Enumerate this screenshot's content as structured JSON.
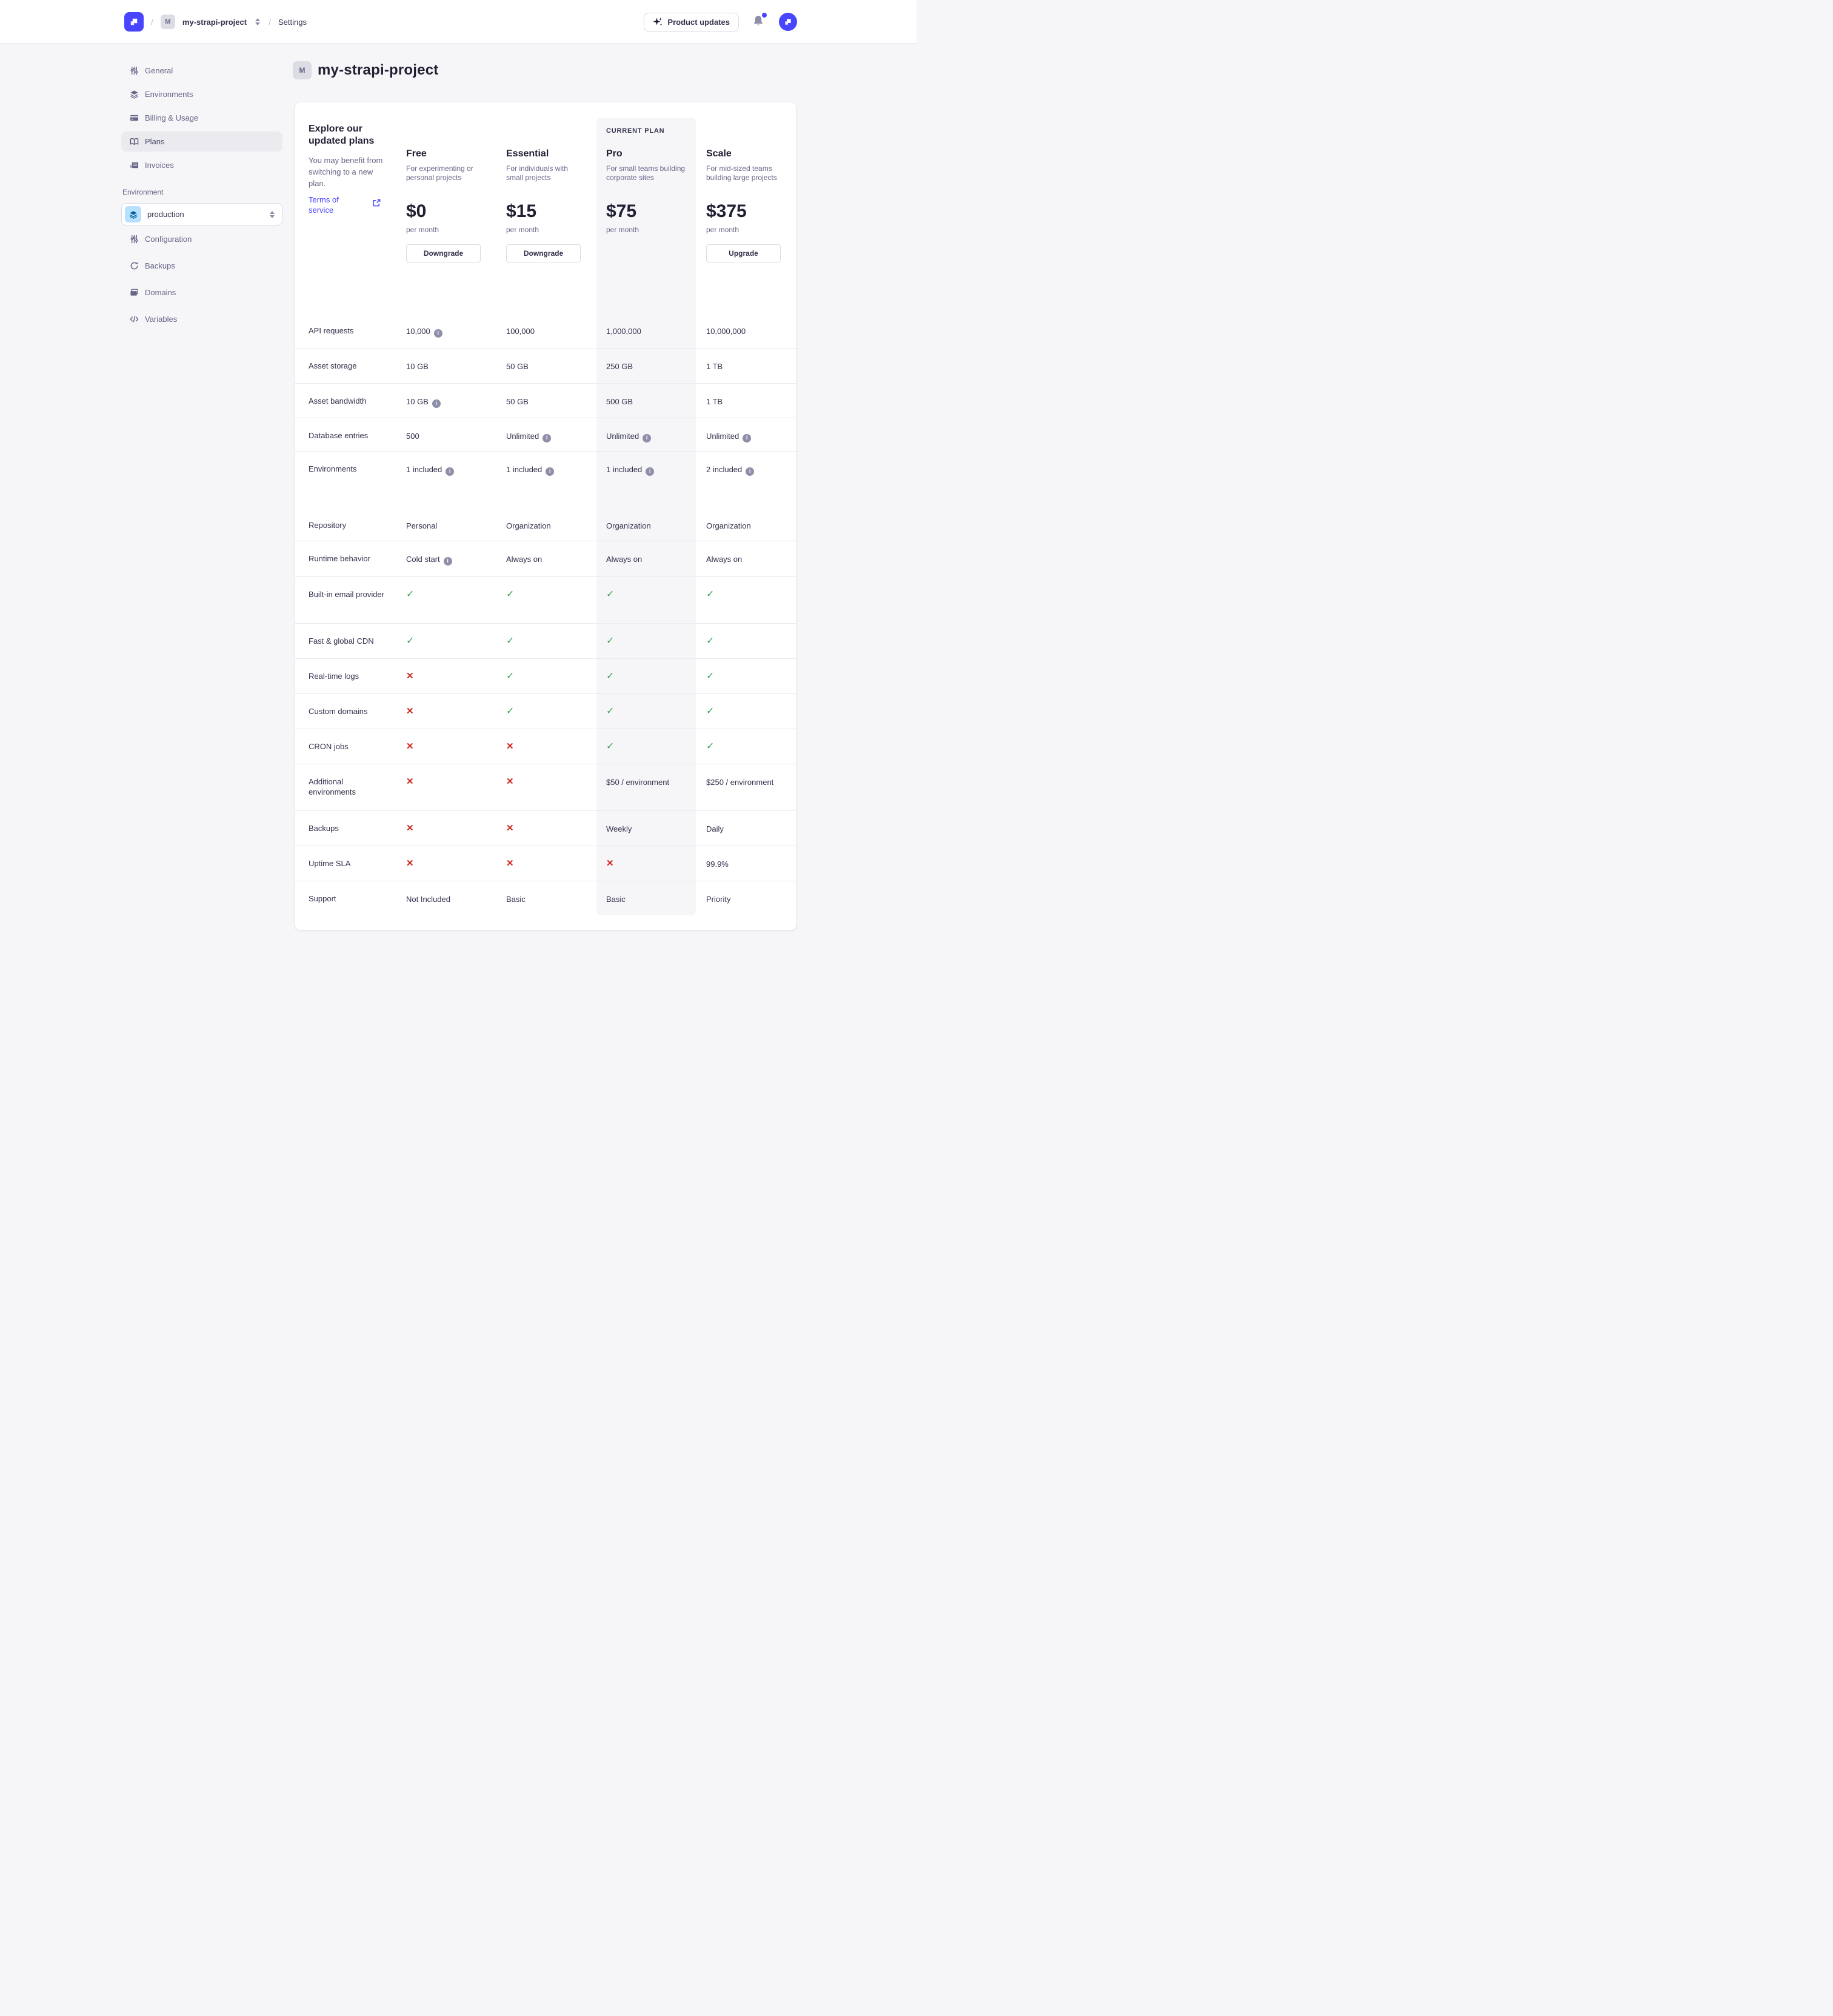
{
  "colors": {
    "brand_purple": "#4945ff",
    "text_dark": "#212134",
    "text_body": "#32324d",
    "text_muted": "#666687",
    "border": "#dcdce4",
    "divider": "#eaeaef",
    "page_bg": "#f6f6f9",
    "success_green": "#3aa55c",
    "danger_red": "#d02b20",
    "env_icon_bg": "#b8e1ff",
    "env_icon_fg": "#006096"
  },
  "navbar": {
    "separator": "/",
    "project_initial": "M",
    "project_name": "my-strapi-project",
    "section": "Settings",
    "product_updates_label": "Product updates"
  },
  "sidebar": {
    "project_items": [
      {
        "icon": "sliders-icon",
        "label": "General"
      },
      {
        "icon": "layers-icon",
        "label": "Environments"
      },
      {
        "icon": "credit-card-icon",
        "label": "Billing & Usage"
      },
      {
        "icon": "book-icon",
        "label": "Plans",
        "active": true
      },
      {
        "icon": "invoice-icon",
        "label": "Invoices"
      }
    ],
    "environment_label": "Environment",
    "environment_value": "production",
    "environment_items": [
      {
        "icon": "sliders-icon",
        "label": "Configuration"
      },
      {
        "icon": "refresh-icon",
        "label": "Backups"
      },
      {
        "icon": "folder-icon",
        "label": "Domains"
      },
      {
        "icon": "code-icon",
        "label": "Variables"
      }
    ]
  },
  "page": {
    "project_initial": "M",
    "title": "my-strapi-project"
  },
  "plans_panel": {
    "heading": "Explore our updated plans",
    "subheading": "You may benefit from switching to a new plan.",
    "terms_link": "Terms of service",
    "current_plan_badge": "CURRENT PLAN",
    "plans": [
      {
        "name": "Free",
        "description": "For experimenting or personal projects",
        "price": "$0",
        "period": "per month",
        "action": "Downgrade",
        "current": false
      },
      {
        "name": "Essential",
        "description": "For individuals with small projects",
        "price": "$15",
        "period": "per month",
        "action": "Downgrade",
        "current": false
      },
      {
        "name": "Pro",
        "description": "For small teams building corporate sites",
        "price": "$75",
        "period": "per month",
        "current": true
      },
      {
        "name": "Scale",
        "description": "For mid-sized teams building large projects",
        "price": "$375",
        "period": "per month",
        "action": "Upgrade",
        "current": false
      }
    ],
    "table": {
      "rows": [
        {
          "label": "API requests",
          "cells": [
            {
              "type": "text",
              "value": "10,000",
              "info": true
            },
            {
              "type": "text",
              "value": "100,000"
            },
            {
              "type": "text",
              "value": "1,000,000"
            },
            {
              "type": "text",
              "value": "10,000,000"
            }
          ]
        },
        {
          "label": "Asset storage",
          "cells": [
            {
              "type": "text",
              "value": "10 GB"
            },
            {
              "type": "text",
              "value": "50 GB"
            },
            {
              "type": "text",
              "value": "250 GB"
            },
            {
              "type": "text",
              "value": "1 TB"
            }
          ]
        },
        {
          "label": "Asset bandwidth",
          "cells": [
            {
              "type": "text",
              "value": "10 GB",
              "info": true
            },
            {
              "type": "text",
              "value": "50 GB"
            },
            {
              "type": "text",
              "value": "500 GB"
            },
            {
              "type": "text",
              "value": "1 TB"
            }
          ]
        },
        {
          "label": "Database entries",
          "cells": [
            {
              "type": "text",
              "value": "500"
            },
            {
              "type": "text",
              "value": "Unlimited",
              "info": true
            },
            {
              "type": "text",
              "value": "Unlimited",
              "info": true
            },
            {
              "type": "text",
              "value": "Unlimited",
              "info": true
            }
          ]
        },
        {
          "label": "Environments",
          "cells": [
            {
              "type": "text",
              "value": "1 included",
              "info": true
            },
            {
              "type": "text",
              "value": "1 included",
              "info": true
            },
            {
              "type": "text",
              "value": "1 included",
              "info": true
            },
            {
              "type": "text",
              "value": "2 included",
              "info": true
            }
          ]
        },
        {
          "label": "Repository",
          "cells": [
            {
              "type": "text",
              "value": "Personal"
            },
            {
              "type": "text",
              "value": "Organization"
            },
            {
              "type": "text",
              "value": "Organization"
            },
            {
              "type": "text",
              "value": "Organization"
            }
          ]
        },
        {
          "label": "Runtime behavior",
          "cells": [
            {
              "type": "text",
              "value": "Cold start",
              "info": true
            },
            {
              "type": "text",
              "value": "Always on"
            },
            {
              "type": "text",
              "value": "Always on"
            },
            {
              "type": "text",
              "value": "Always on"
            }
          ]
        },
        {
          "label": "Built-in email provider",
          "cells": [
            {
              "type": "check"
            },
            {
              "type": "check"
            },
            {
              "type": "check"
            },
            {
              "type": "check"
            }
          ]
        },
        {
          "label": "Fast & global CDN",
          "cells": [
            {
              "type": "check"
            },
            {
              "type": "check"
            },
            {
              "type": "check"
            },
            {
              "type": "check"
            }
          ]
        },
        {
          "label": "Real-time logs",
          "cells": [
            {
              "type": "cross"
            },
            {
              "type": "check"
            },
            {
              "type": "check"
            },
            {
              "type": "check"
            }
          ]
        },
        {
          "label": "Custom domains",
          "cells": [
            {
              "type": "cross"
            },
            {
              "type": "check"
            },
            {
              "type": "check"
            },
            {
              "type": "check"
            }
          ]
        },
        {
          "label": "CRON jobs",
          "cells": [
            {
              "type": "cross"
            },
            {
              "type": "cross"
            },
            {
              "type": "check"
            },
            {
              "type": "check"
            }
          ]
        },
        {
          "label": "Additional environments",
          "cells": [
            {
              "type": "cross"
            },
            {
              "type": "cross"
            },
            {
              "type": "text",
              "value": "$50 / environment"
            },
            {
              "type": "text",
              "value": "$250 / environment"
            }
          ]
        },
        {
          "label": "Backups",
          "cells": [
            {
              "type": "cross"
            },
            {
              "type": "cross"
            },
            {
              "type": "text",
              "value": "Weekly"
            },
            {
              "type": "text",
              "value": "Daily"
            }
          ]
        },
        {
          "label": "Uptime SLA",
          "cells": [
            {
              "type": "cross"
            },
            {
              "type": "cross"
            },
            {
              "type": "cross"
            },
            {
              "type": "text",
              "value": "99.9%"
            }
          ]
        },
        {
          "label": "Support",
          "cells": [
            {
              "type": "text",
              "value": "Not Included"
            },
            {
              "type": "text",
              "value": "Basic"
            },
            {
              "type": "text",
              "value": "Basic"
            },
            {
              "type": "text",
              "value": "Priority"
            }
          ]
        }
      ]
    }
  }
}
